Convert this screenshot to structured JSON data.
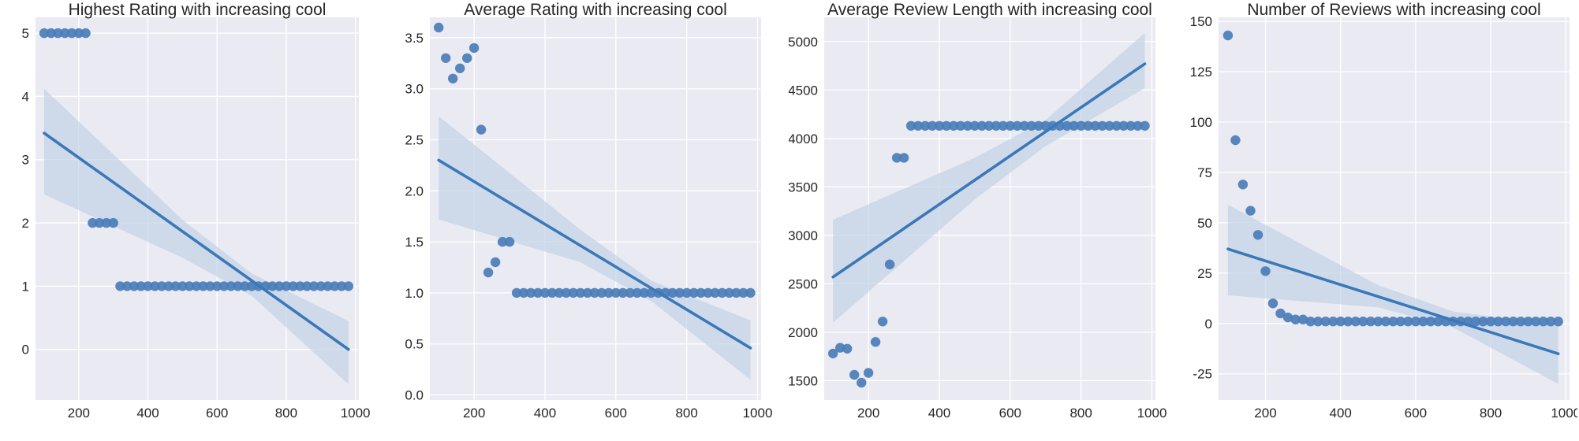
{
  "style": {
    "plot_bg": "#eaeaf2",
    "grid": "#ffffff",
    "point_color": "#4a7db8",
    "line_color": "#3a78b8",
    "band_color": "#bdcfe4"
  },
  "chart_data": [
    {
      "type": "scatter",
      "title": "Highest Rating with increasing cool",
      "xlabel": "",
      "ylabel": "",
      "xlim": [
        75,
        1010
      ],
      "ylim": [
        -0.8,
        5.25
      ],
      "xticks": [
        200,
        400,
        600,
        800,
        1000
      ],
      "yticks": [
        0,
        1,
        2,
        3,
        4,
        5
      ],
      "x": [
        100,
        120,
        140,
        160,
        180,
        200,
        220,
        240,
        260,
        280,
        300,
        320,
        340,
        360,
        380,
        400,
        420,
        440,
        460,
        480,
        500,
        520,
        540,
        560,
        580,
        600,
        620,
        640,
        660,
        680,
        700,
        720,
        740,
        760,
        780,
        800,
        820,
        840,
        860,
        880,
        900,
        920,
        940,
        960,
        980
      ],
      "y": [
        5,
        5,
        5,
        5,
        5,
        5,
        5,
        2,
        2,
        2,
        2,
        1,
        1,
        1,
        1,
        1,
        1,
        1,
        1,
        1,
        1,
        1,
        1,
        1,
        1,
        1,
        1,
        1,
        1,
        1,
        1,
        1,
        1,
        1,
        1,
        1,
        1,
        1,
        1,
        1,
        1,
        1,
        1,
        1,
        1
      ],
      "regression": {
        "x": [
          100,
          980
        ],
        "y": [
          3.42,
          0.0
        ]
      },
      "ci_band": {
        "x": [
          100,
          500,
          700,
          980
        ],
        "lower": [
          2.45,
          1.45,
          0.85,
          -0.55
        ],
        "upper": [
          4.12,
          2.05,
          1.2,
          0.45
        ]
      },
      "grid": true
    },
    {
      "type": "scatter",
      "title": "Average Rating with increasing cool",
      "xlabel": "",
      "ylabel": "",
      "xlim": [
        75,
        1010
      ],
      "ylim": [
        -0.05,
        3.7
      ],
      "xticks": [
        200,
        400,
        600,
        800,
        1000
      ],
      "yticks": [
        0.0,
        0.5,
        1.0,
        1.5,
        2.0,
        2.5,
        3.0,
        3.5
      ],
      "x": [
        100,
        120,
        140,
        160,
        180,
        200,
        220,
        240,
        260,
        280,
        300,
        320,
        340,
        360,
        380,
        400,
        420,
        440,
        460,
        480,
        500,
        520,
        540,
        560,
        580,
        600,
        620,
        640,
        660,
        680,
        700,
        720,
        740,
        760,
        780,
        800,
        820,
        840,
        860,
        880,
        900,
        920,
        940,
        960,
        980
      ],
      "y": [
        3.6,
        3.3,
        3.1,
        3.2,
        3.3,
        3.4,
        2.6,
        1.2,
        1.3,
        1.5,
        1.5,
        1,
        1,
        1,
        1,
        1,
        1,
        1,
        1,
        1,
        1,
        1,
        1,
        1,
        1,
        1,
        1,
        1,
        1,
        1,
        1,
        1,
        1,
        1,
        1,
        1,
        1,
        1,
        1,
        1,
        1,
        1,
        1,
        1,
        1
      ],
      "regression": {
        "x": [
          100,
          980
        ],
        "y": [
          2.3,
          0.46
        ]
      },
      "ci_band": {
        "x": [
          100,
          500,
          700,
          980
        ],
        "lower": [
          1.72,
          1.3,
          0.92,
          0.15
        ],
        "upper": [
          2.73,
          1.62,
          1.12,
          0.73
        ]
      },
      "grid": true
    },
    {
      "type": "scatter",
      "title": "Average Review Length with increasing cool",
      "xlabel": "",
      "ylabel": "",
      "xlim": [
        75,
        1010
      ],
      "ylim": [
        1300,
        5250
      ],
      "xticks": [
        200,
        400,
        600,
        800,
        1000
      ],
      "yticks": [
        1500,
        2000,
        2500,
        3000,
        3500,
        4000,
        4500,
        5000
      ],
      "x": [
        100,
        120,
        140,
        160,
        180,
        200,
        220,
        240,
        260,
        280,
        300,
        320,
        340,
        360,
        380,
        400,
        420,
        440,
        460,
        480,
        500,
        520,
        540,
        560,
        580,
        600,
        620,
        640,
        660,
        680,
        700,
        720,
        740,
        760,
        780,
        800,
        820,
        840,
        860,
        880,
        900,
        920,
        940,
        960,
        980
      ],
      "y": [
        1780,
        1840,
        1830,
        1560,
        1480,
        1580,
        1900,
        2110,
        2700,
        3800,
        3800,
        4130,
        4130,
        4130,
        4130,
        4130,
        4130,
        4130,
        4130,
        4130,
        4130,
        4130,
        4130,
        4130,
        4130,
        4130,
        4130,
        4130,
        4130,
        4130,
        4130,
        4130,
        4130,
        4130,
        4130,
        4130,
        4130,
        4130,
        4130,
        4130,
        4130,
        4130,
        4130,
        4130,
        4130
      ],
      "regression": {
        "x": [
          100,
          980
        ],
        "y": [
          2570,
          4770
        ]
      },
      "ci_band": {
        "x": [
          100,
          500,
          700,
          980
        ],
        "lower": [
          2100,
          3370,
          3920,
          4520
        ],
        "upper": [
          3160,
          3800,
          4190,
          5090
        ]
      },
      "grid": true
    },
    {
      "type": "scatter",
      "title": "Number of Reviews with increasing cool",
      "xlabel": "",
      "ylabel": "",
      "xlim": [
        75,
        1010
      ],
      "ylim": [
        -38,
        152
      ],
      "xticks": [
        200,
        400,
        600,
        800,
        1000
      ],
      "yticks": [
        -25,
        0,
        25,
        50,
        75,
        100,
        125,
        150
      ],
      "x": [
        100,
        120,
        140,
        160,
        180,
        200,
        220,
        240,
        260,
        280,
        300,
        320,
        340,
        360,
        380,
        400,
        420,
        440,
        460,
        480,
        500,
        520,
        540,
        560,
        580,
        600,
        620,
        640,
        660,
        680,
        700,
        720,
        740,
        760,
        780,
        800,
        820,
        840,
        860,
        880,
        900,
        920,
        940,
        960,
        980
      ],
      "y": [
        143,
        91,
        69,
        56,
        44,
        26,
        10,
        5,
        3,
        2,
        2,
        1,
        1,
        1,
        1,
        1,
        1,
        1,
        1,
        1,
        1,
        1,
        1,
        1,
        1,
        1,
        1,
        1,
        1,
        1,
        1,
        1,
        1,
        1,
        1,
        1,
        1,
        1,
        1,
        1,
        1,
        1,
        1,
        1,
        1
      ],
      "regression": {
        "x": [
          100,
          980
        ],
        "y": [
          37,
          -15
        ]
      },
      "ci_band": {
        "x": [
          100,
          500,
          700,
          980
        ],
        "lower": [
          14,
          8,
          -2,
          -30
        ],
        "upper": [
          59,
          19,
          6,
          -1
        ]
      },
      "grid": true
    }
  ]
}
